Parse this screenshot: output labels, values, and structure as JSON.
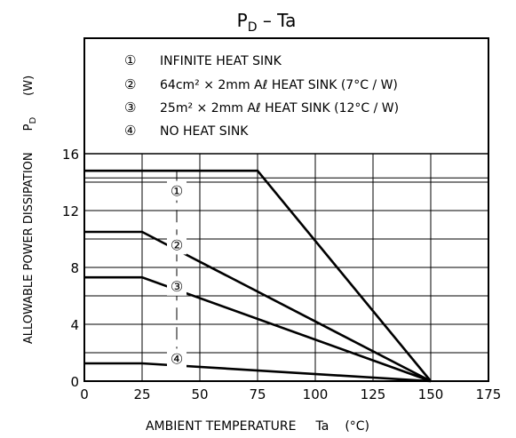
{
  "title_main": "P",
  "title_sub": "D",
  "title_rest": " – Ta",
  "y_axis": {
    "label": "ALLOWABLE POWER DISSIPATION",
    "symbol": "P",
    "symbol_sub": "D",
    "unit": "(W)"
  },
  "x_axis": {
    "label": "AMBIENT TEMPERATURE",
    "symbol": "Ta",
    "unit": "(°C)"
  },
  "legend": [
    {
      "marker": "①",
      "text": "INFINITE HEAT SINK"
    },
    {
      "marker": "②",
      "text": "64cm² × 2mm Aℓ HEAT SINK (7°C / W)"
    },
    {
      "marker": "③",
      "text": "25m² × 2mm Aℓ HEAT SINK (12°C / W)"
    },
    {
      "marker": "④",
      "text": "NO HEAT SINK"
    }
  ],
  "chart_data": {
    "type": "line",
    "title": "PD – Ta",
    "xlabel": "AMBIENT TEMPERATURE Ta (°C)",
    "ylabel": "ALLOWABLE POWER DISSIPATION PD (W)",
    "xlim": [
      0,
      175
    ],
    "ylim": [
      0,
      16
    ],
    "x_ticks": [
      "0",
      "25",
      "50",
      "75",
      "100",
      "125",
      "150",
      "175"
    ],
    "y_ticks": [
      "0",
      "4",
      "8",
      "12",
      "16"
    ],
    "grid": true,
    "series": [
      {
        "name": "①",
        "x": [
          0,
          75,
          150
        ],
        "y": [
          14.8,
          14.8,
          0
        ]
      },
      {
        "name": "②",
        "x": [
          0,
          25,
          150
        ],
        "y": [
          10.5,
          10.5,
          0
        ]
      },
      {
        "name": "③",
        "x": [
          0,
          25,
          150
        ],
        "y": [
          7.3,
          7.3,
          0
        ]
      },
      {
        "name": "④",
        "x": [
          0,
          25,
          150
        ],
        "y": [
          1.25,
          1.25,
          0
        ]
      }
    ],
    "curve_labels": [
      {
        "text": "①",
        "x": 40,
        "y": 13.4
      },
      {
        "text": "②",
        "x": 40,
        "y": 9.6
      },
      {
        "text": "③",
        "x": 40,
        "y": 6.7
      },
      {
        "text": "④",
        "x": 40,
        "y": 1.6
      }
    ]
  }
}
